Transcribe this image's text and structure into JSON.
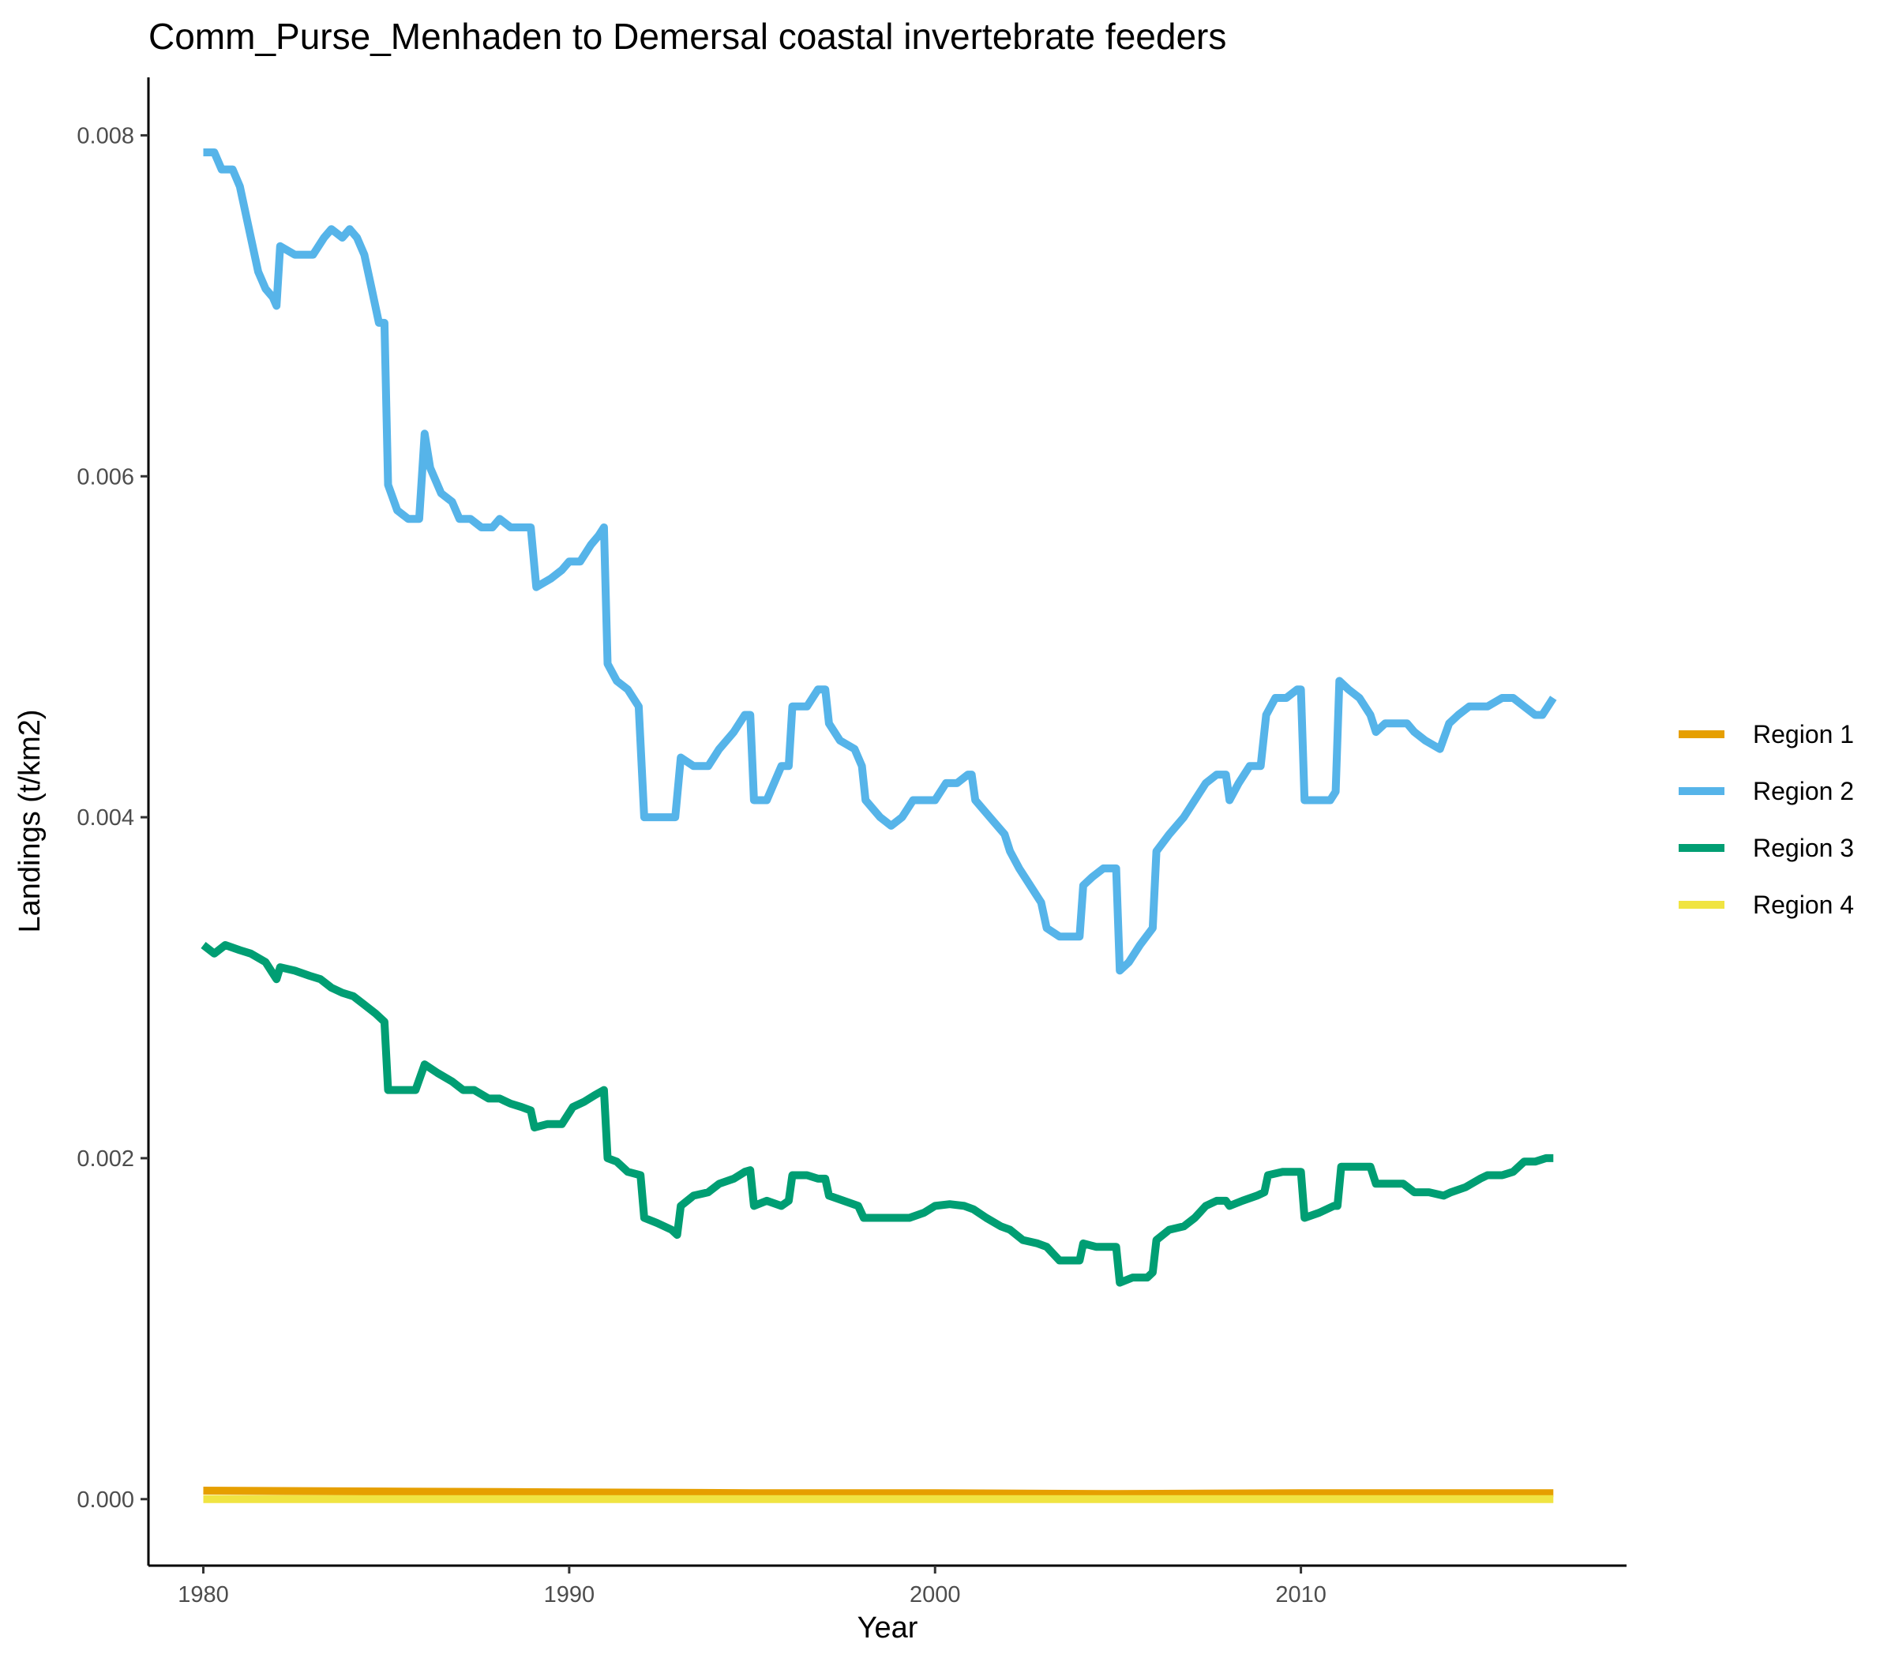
{
  "chart_data": {
    "type": "line",
    "title": "Comm_Purse_Menhaden to Demersal coastal invertebrate feeders",
    "xlabel": "Year",
    "ylabel": "Landings (t/km2)",
    "xlim": [
      1978.5,
      2018.9
    ],
    "ylim": [
      -0.00039,
      0.00834
    ],
    "x_ticks": [
      1980,
      1990,
      2000,
      2010
    ],
    "x_tick_labels": [
      "1980",
      "1990",
      "2000",
      "2010"
    ],
    "y_ticks": [
      0,
      0.002,
      0.004,
      0.006,
      0.008
    ],
    "y_tick_labels": [
      "0.000",
      "0.002",
      "0.004",
      "0.006",
      "0.008"
    ],
    "grid": false,
    "legend_position": "right",
    "series": [
      {
        "name": "Region 1",
        "color": "#E69F00",
        "x": [
          1980.0,
          1985.0,
          1990.0,
          1995.0,
          2000.0,
          2005.0,
          2010.0,
          2016.9
        ],
        "y": [
          5e-05,
          4.5e-05,
          4e-05,
          3.5e-05,
          3.5e-05,
          3e-05,
          3.5e-05,
          3.5e-05
        ]
      },
      {
        "name": "Region 2",
        "color": "#56B4E9",
        "x": [
          1980.0,
          1980.3,
          1980.5,
          1980.8,
          1981.0,
          1981.3,
          1981.5,
          1981.7,
          1981.9,
          1982.0,
          1982.1,
          1982.5,
          1983.0,
          1983.3,
          1983.5,
          1983.8,
          1984.0,
          1984.2,
          1984.4,
          1984.6,
          1984.8,
          1984.95,
          1985.05,
          1985.3,
          1985.6,
          1985.9,
          1986.05,
          1986.2,
          1986.5,
          1986.8,
          1987.0,
          1987.3,
          1987.6,
          1987.9,
          1988.1,
          1988.4,
          1988.7,
          1988.95,
          1989.1,
          1989.5,
          1989.8,
          1990.0,
          1990.3,
          1990.6,
          1990.8,
          1990.95,
          1991.05,
          1991.3,
          1991.6,
          1991.9,
          1992.05,
          1992.3,
          1992.6,
          1992.9,
          1993.05,
          1993.4,
          1993.8,
          1994.1,
          1994.5,
          1994.8,
          1994.95,
          1995.05,
          1995.4,
          1995.8,
          1996.0,
          1996.1,
          1996.5,
          1996.8,
          1997.0,
          1997.1,
          1997.4,
          1997.8,
          1998.0,
          1998.1,
          1998.5,
          1998.8,
          1999.1,
          1999.4,
          1999.7,
          2000.0,
          2000.3,
          2000.6,
          2000.9,
          2001.0,
          2001.1,
          2001.5,
          2001.9,
          2002.05,
          2002.3,
          2002.6,
          2002.9,
          2003.05,
          2003.4,
          2003.8,
          2003.95,
          2004.05,
          2004.3,
          2004.6,
          2004.95,
          2005.05,
          2005.3,
          2005.6,
          2005.95,
          2006.05,
          2006.4,
          2006.8,
          2007.1,
          2007.4,
          2007.7,
          2007.95,
          2008.05,
          2008.3,
          2008.6,
          2008.9,
          2009.05,
          2009.3,
          2009.6,
          2009.9,
          2010.0,
          2010.1,
          2010.4,
          2010.8,
          2010.95,
          2011.05,
          2011.3,
          2011.6,
          2011.9,
          2012.05,
          2012.3,
          2012.6,
          2012.9,
          2013.1,
          2013.4,
          2013.8,
          2014.05,
          2014.3,
          2014.6,
          2014.9,
          2015.1,
          2015.5,
          2015.8,
          2016.1,
          2016.4,
          2016.6,
          2016.9
        ],
        "y": [
          0.0079,
          0.0079,
          0.0078,
          0.0078,
          0.0077,
          0.0074,
          0.0072,
          0.0071,
          0.00705,
          0.007,
          0.00735,
          0.0073,
          0.0073,
          0.0074,
          0.00745,
          0.0074,
          0.00745,
          0.0074,
          0.0073,
          0.0071,
          0.0069,
          0.0069,
          0.00595,
          0.0058,
          0.00575,
          0.00575,
          0.00625,
          0.00605,
          0.0059,
          0.00585,
          0.00575,
          0.00575,
          0.0057,
          0.0057,
          0.00575,
          0.0057,
          0.0057,
          0.0057,
          0.00535,
          0.0054,
          0.00545,
          0.0055,
          0.0055,
          0.0056,
          0.00565,
          0.0057,
          0.0049,
          0.0048,
          0.00475,
          0.00465,
          0.004,
          0.004,
          0.004,
          0.004,
          0.00435,
          0.0043,
          0.0043,
          0.0044,
          0.0045,
          0.0046,
          0.0046,
          0.0041,
          0.0041,
          0.0043,
          0.0043,
          0.00465,
          0.00465,
          0.00475,
          0.00475,
          0.00455,
          0.00445,
          0.0044,
          0.0043,
          0.0041,
          0.004,
          0.00395,
          0.004,
          0.0041,
          0.0041,
          0.0041,
          0.0042,
          0.0042,
          0.00425,
          0.00425,
          0.0041,
          0.004,
          0.0039,
          0.0038,
          0.0037,
          0.0036,
          0.0035,
          0.00335,
          0.0033,
          0.0033,
          0.0033,
          0.0036,
          0.00365,
          0.0037,
          0.0037,
          0.0031,
          0.00315,
          0.00325,
          0.00335,
          0.0038,
          0.0039,
          0.004,
          0.0041,
          0.0042,
          0.00425,
          0.00425,
          0.0041,
          0.0042,
          0.0043,
          0.0043,
          0.0046,
          0.0047,
          0.0047,
          0.00475,
          0.00475,
          0.0041,
          0.0041,
          0.0041,
          0.00415,
          0.0048,
          0.00475,
          0.0047,
          0.0046,
          0.0045,
          0.00455,
          0.00455,
          0.00455,
          0.0045,
          0.00445,
          0.0044,
          0.00455,
          0.0046,
          0.00465,
          0.00465,
          0.00465,
          0.0047,
          0.0047,
          0.00465,
          0.0046,
          0.0046,
          0.0047
        ]
      },
      {
        "name": "Region 3",
        "color": "#009E73",
        "x": [
          1980.0,
          1980.3,
          1980.6,
          1981.0,
          1981.3,
          1981.7,
          1982.0,
          1982.1,
          1982.5,
          1982.9,
          1983.2,
          1983.5,
          1983.8,
          1984.1,
          1984.4,
          1984.7,
          1984.95,
          1985.05,
          1985.4,
          1985.8,
          1986.05,
          1986.4,
          1986.8,
          1987.1,
          1987.4,
          1987.8,
          1988.1,
          1988.4,
          1988.7,
          1988.95,
          1989.05,
          1989.4,
          1989.8,
          1990.1,
          1990.4,
          1990.7,
          1990.95,
          1991.05,
          1991.3,
          1991.6,
          1991.95,
          1992.05,
          1992.4,
          1992.8,
          1992.95,
          1993.05,
          1993.4,
          1993.8,
          1994.1,
          1994.5,
          1994.8,
          1994.95,
          1995.05,
          1995.4,
          1995.8,
          1996.0,
          1996.1,
          1996.5,
          1996.8,
          1997.0,
          1997.1,
          1997.5,
          1997.9,
          1998.05,
          1998.5,
          1998.9,
          1999.3,
          1999.7,
          2000.0,
          2000.4,
          2000.8,
          2001.05,
          2001.4,
          2001.8,
          2002.05,
          2002.4,
          2002.8,
          2003.05,
          2003.4,
          2003.8,
          2003.95,
          2004.05,
          2004.4,
          2004.8,
          2004.95,
          2005.05,
          2005.4,
          2005.8,
          2005.95,
          2006.05,
          2006.4,
          2006.8,
          2007.1,
          2007.4,
          2007.7,
          2007.95,
          2008.05,
          2008.4,
          2008.8,
          2009.0,
          2009.1,
          2009.5,
          2009.9,
          2010.0,
          2010.1,
          2010.5,
          2010.9,
          2011.0,
          2011.1,
          2011.5,
          2011.9,
          2012.05,
          2012.4,
          2012.8,
          2013.1,
          2013.5,
          2013.9,
          2014.1,
          2014.5,
          2014.9,
          2015.1,
          2015.5,
          2015.8,
          2016.1,
          2016.4,
          2016.7,
          2016.9
        ],
        "y": [
          0.00325,
          0.0032,
          0.00325,
          0.00322,
          0.0032,
          0.00315,
          0.00305,
          0.00312,
          0.0031,
          0.00307,
          0.00305,
          0.003,
          0.00297,
          0.00295,
          0.0029,
          0.00285,
          0.0028,
          0.0024,
          0.0024,
          0.0024,
          0.00255,
          0.0025,
          0.00245,
          0.0024,
          0.0024,
          0.00235,
          0.00235,
          0.00232,
          0.0023,
          0.00228,
          0.00218,
          0.0022,
          0.0022,
          0.0023,
          0.00233,
          0.00237,
          0.0024,
          0.002,
          0.00198,
          0.00192,
          0.0019,
          0.00165,
          0.00162,
          0.00158,
          0.00155,
          0.00172,
          0.00178,
          0.0018,
          0.00185,
          0.00188,
          0.00192,
          0.00193,
          0.00172,
          0.00175,
          0.00172,
          0.00175,
          0.0019,
          0.0019,
          0.00188,
          0.00188,
          0.00178,
          0.00175,
          0.00172,
          0.00165,
          0.00165,
          0.00165,
          0.00165,
          0.00168,
          0.00172,
          0.00173,
          0.00172,
          0.0017,
          0.00165,
          0.0016,
          0.00158,
          0.00152,
          0.0015,
          0.00148,
          0.0014,
          0.0014,
          0.0014,
          0.0015,
          0.00148,
          0.00148,
          0.00148,
          0.00127,
          0.0013,
          0.0013,
          0.00133,
          0.00152,
          0.00158,
          0.0016,
          0.00165,
          0.00172,
          0.00175,
          0.00175,
          0.00172,
          0.00175,
          0.00178,
          0.0018,
          0.0019,
          0.00192,
          0.00192,
          0.00192,
          0.00165,
          0.00168,
          0.00172,
          0.00172,
          0.00195,
          0.00195,
          0.00195,
          0.00185,
          0.00185,
          0.00185,
          0.0018,
          0.0018,
          0.00178,
          0.0018,
          0.00183,
          0.00188,
          0.0019,
          0.0019,
          0.00192,
          0.00198,
          0.00198,
          0.002,
          0.002
        ]
      },
      {
        "name": "Region 4",
        "color": "#F0E442",
        "x": [
          1980.0,
          1990.0,
          2000.0,
          2010.0,
          2016.9
        ],
        "y": [
          0.0,
          0.0,
          0.0,
          0.0,
          0.0
        ]
      }
    ]
  }
}
